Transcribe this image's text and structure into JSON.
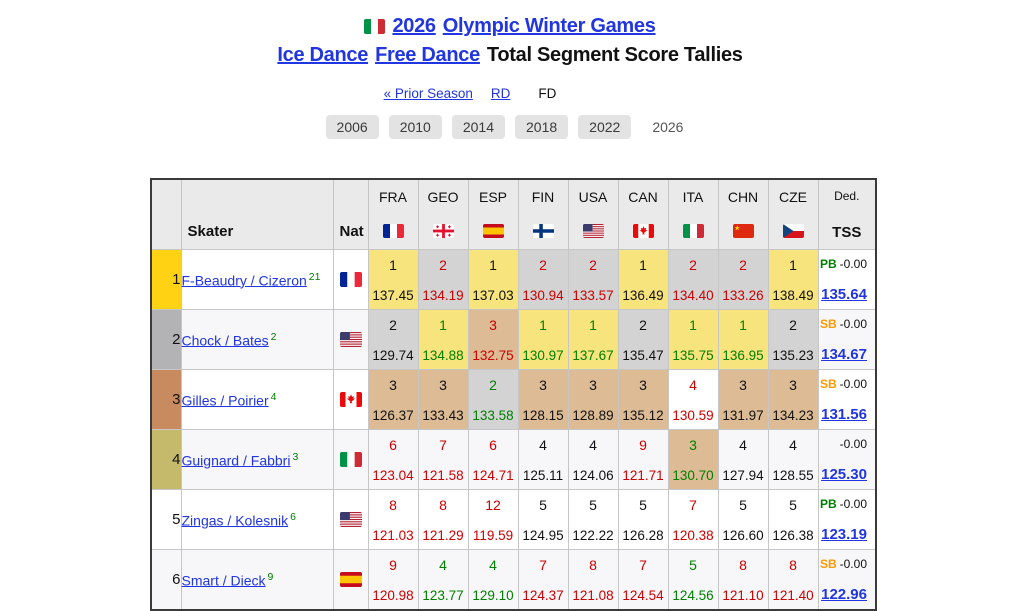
{
  "title": {
    "flag": "ITA",
    "year_link": "2026",
    "event_link": "Olympic Winter Games",
    "discipline_link": "Ice Dance",
    "segment_link": "Free Dance",
    "suffix": "Total Segment Score Tallies"
  },
  "nav": {
    "prior_season": "« Prior Season",
    "rd": "RD",
    "fd": "FD"
  },
  "years": [
    "2006",
    "2010",
    "2014",
    "2018",
    "2022",
    "2026"
  ],
  "current_year": "2026",
  "table": {
    "skater_header": "Skater",
    "nat_header": "Nat",
    "ded_header": "Ded.",
    "tss_header": "TSS",
    "judge_countries": [
      "FRA",
      "GEO",
      "ESP",
      "FIN",
      "USA",
      "CAN",
      "ITA",
      "CHN",
      "CZE"
    ],
    "rows": [
      {
        "rank": 1,
        "name": "F-Beaudry / Cizeron",
        "footnote": "21",
        "nat": "FRA",
        "places": [
          1,
          2,
          1,
          2,
          2,
          1,
          2,
          2,
          1
        ],
        "scores": [
          "137.45",
          "134.19",
          "137.03",
          "130.94",
          "133.57",
          "136.49",
          "134.40",
          "133.26",
          "138.49"
        ],
        "ded_label": "PB",
        "ded": "-0.00",
        "tss": "135.64"
      },
      {
        "rank": 2,
        "name": "Chock / Bates",
        "footnote": "2",
        "nat": "USA",
        "places": [
          2,
          1,
          3,
          1,
          1,
          2,
          1,
          1,
          2
        ],
        "scores": [
          "129.74",
          "134.88",
          "132.75",
          "130.97",
          "137.67",
          "135.47",
          "135.75",
          "136.95",
          "135.23"
        ],
        "ded_label": "SB",
        "ded": "-0.00",
        "tss": "134.67"
      },
      {
        "rank": 3,
        "name": "Gilles / Poirier",
        "footnote": "4",
        "nat": "CAN",
        "places": [
          3,
          3,
          2,
          3,
          3,
          3,
          4,
          3,
          3
        ],
        "scores": [
          "126.37",
          "133.43",
          "133.58",
          "128.15",
          "128.89",
          "135.12",
          "130.59",
          "131.97",
          "134.23"
        ],
        "ded_label": "SB",
        "ded": "-0.00",
        "tss": "131.56"
      },
      {
        "rank": 4,
        "name": "Guignard / Fabbri",
        "footnote": "3",
        "nat": "ITA",
        "places": [
          6,
          7,
          6,
          4,
          4,
          9,
          3,
          4,
          4
        ],
        "scores": [
          "123.04",
          "121.58",
          "124.71",
          "125.11",
          "124.06",
          "121.71",
          "130.70",
          "127.94",
          "128.55"
        ],
        "ded_label": "",
        "ded": "-0.00",
        "tss": "125.30"
      },
      {
        "rank": 5,
        "name": "Zingas / Kolesnik",
        "footnote": "6",
        "nat": "USA",
        "places": [
          8,
          8,
          12,
          5,
          5,
          5,
          7,
          5,
          5
        ],
        "scores": [
          "121.03",
          "121.29",
          "119.59",
          "124.95",
          "122.22",
          "126.28",
          "120.38",
          "126.60",
          "126.38"
        ],
        "ded_label": "PB",
        "ded": "-0.00",
        "tss": "123.19"
      },
      {
        "rank": 6,
        "name": "Smart / Dieck",
        "footnote": "9",
        "nat": "ESP",
        "places": [
          9,
          4,
          4,
          7,
          8,
          7,
          5,
          8,
          8
        ],
        "scores": [
          "120.98",
          "123.77",
          "129.10",
          "124.37",
          "121.08",
          "124.54",
          "124.56",
          "121.10",
          "121.40"
        ],
        "ded_label": "SB",
        "ded": "-0.00",
        "tss": "122.96"
      }
    ]
  },
  "colors": {
    "link_blue": "#2135e0",
    "score_red": "#cc0000",
    "score_green": "#008000",
    "score_black": "#111111",
    "pb_green": "#008000",
    "sb_orange": "#ff9900",
    "rank_gold": "#ffd314",
    "rank_silver": "#b3b3b6",
    "rank_bronze": "#c88b5f",
    "rank_pewter": "#c5ba6b",
    "cell_first": "#f8e47c",
    "cell_second": "#d3d3d3",
    "cell_third": "#dcbb95",
    "row_stripe": "#f7f7f9",
    "header_gray": "#eaeaea"
  }
}
